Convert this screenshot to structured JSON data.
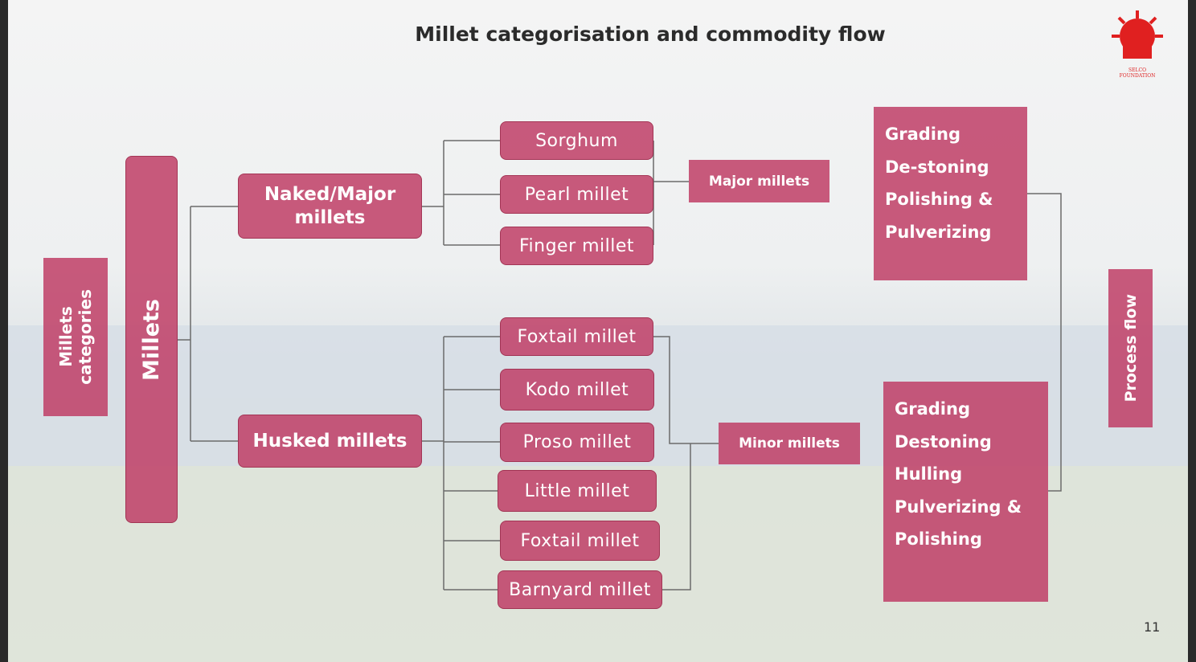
{
  "title": "Millet categorisation and commodity flow",
  "logo": "SELCO FOUNDATION",
  "page_number": "11",
  "side_labels": {
    "categories": [
      "Millets",
      "categories"
    ],
    "millets": "Millets",
    "process": "Process flow"
  },
  "categories": {
    "major": [
      "Naked/Major",
      "millets"
    ],
    "husked": "Husked millets"
  },
  "major_millets": {
    "items": [
      "Sorghum",
      "Pearl millet",
      "Finger millet"
    ],
    "group": "Major millets"
  },
  "minor_millets": {
    "items": [
      "Foxtail millet",
      "Kodo millet",
      "Proso millet",
      "Little millet",
      "Foxtail millet",
      "Barnyard millet"
    ],
    "group": "Minor millets"
  },
  "process": {
    "major": [
      "Grading",
      "De-stoning",
      "Polishing &",
      "Pulverizing"
    ],
    "minor": [
      "Grading",
      "Destoning",
      "Hulling",
      "Pulverizing &",
      "Polishing"
    ]
  }
}
